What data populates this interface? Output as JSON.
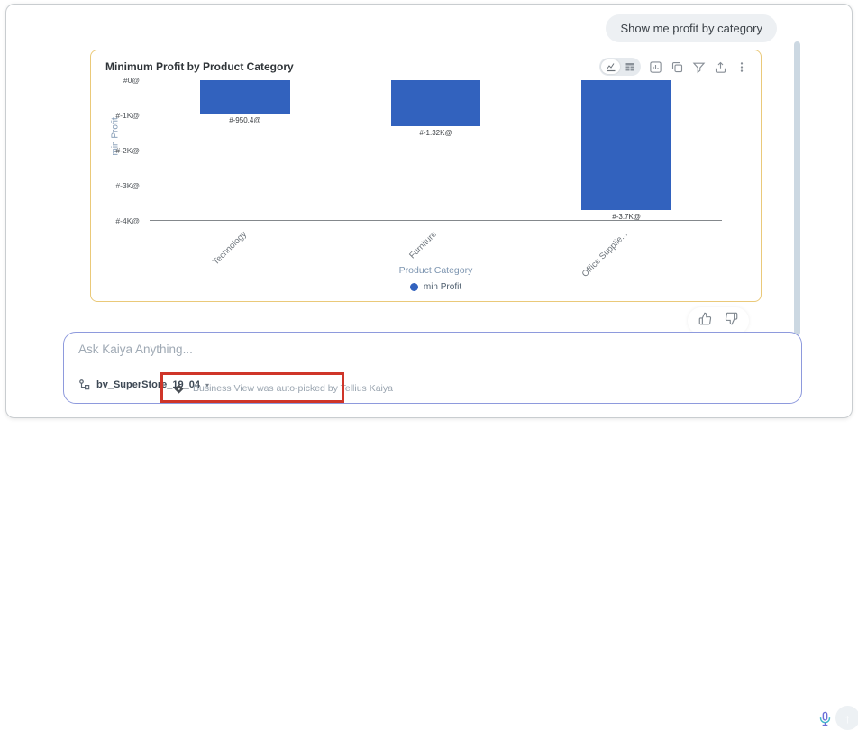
{
  "chat": {
    "user_message": "Show me profit by category"
  },
  "chart_data": {
    "type": "bar",
    "title": "Minimum Profit by Product Category",
    "categories": [
      "Technology",
      "Furniture",
      "Office Supplie..."
    ],
    "series": [
      {
        "name": "min Profit",
        "values": [
          -950.4,
          -1320,
          -3700
        ]
      }
    ],
    "bar_labels": [
      "#-950.4@",
      "#-1.32K@",
      "#-3.7K@"
    ],
    "xlabel": "Product Category",
    "ylabel": "min Profit",
    "ylim": [
      -4000,
      0
    ],
    "yticks": {
      "values": [
        0,
        -1000,
        -2000,
        -3000,
        -4000
      ],
      "labels": [
        "#0@",
        "#-1K@",
        "#-2K@",
        "#-3K@",
        "#-4K@"
      ]
    },
    "grid": false,
    "legend": {
      "position": "bottom",
      "entries": [
        "min Profit"
      ]
    },
    "bar_color": "#3262BE"
  },
  "composer": {
    "placeholder": "Ask Kaiya Anything...",
    "business_view_label": "bv_SuperStore_19_04",
    "auto_pick_note": "Business View was auto-picked by Tellius Kaiya",
    "send_arrow": "↑",
    "caret": "▾"
  },
  "colors": {
    "bar": "#3262BE",
    "card_border": "#EAC979",
    "annotation_red": "#CF3529",
    "scrollbar": "#CCD8E2",
    "composer_border": "#8E9ADD",
    "bubble_bg": "#EDF0F3"
  }
}
